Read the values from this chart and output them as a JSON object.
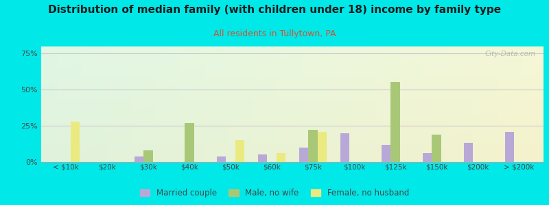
{
  "title": "Distribution of median family (with children under 18) income by family type",
  "subtitle": "All residents in Tullytown, PA",
  "categories": [
    "< $10k",
    "$20k",
    "$30k",
    "$40k",
    "$50k",
    "$60k",
    "$75k",
    "$100k",
    "$125k",
    "$150k",
    "$200k",
    "> $200k"
  ],
  "married_couple": [
    0,
    0,
    4,
    0,
    4,
    5,
    10,
    20,
    12,
    6,
    13,
    21
  ],
  "male_no_wife": [
    0,
    0,
    8,
    27,
    0,
    0,
    22,
    0,
    55,
    19,
    0,
    0
  ],
  "female_no_husband": [
    28,
    0,
    0,
    0,
    15,
    6,
    21,
    0,
    0,
    0,
    0,
    0
  ],
  "married_color": "#b8a8d8",
  "male_color": "#a8c878",
  "female_color": "#eaea80",
  "bg_color": "#00e8e8",
  "title_color": "#1a1a1a",
  "subtitle_color": "#cc5533",
  "ylim": [
    0,
    80
  ],
  "yticks": [
    0,
    25,
    50,
    75
  ],
  "watermark": "City-Data.com",
  "legend_labels": [
    "Married couple",
    "Male, no wife",
    "Female, no husband"
  ]
}
